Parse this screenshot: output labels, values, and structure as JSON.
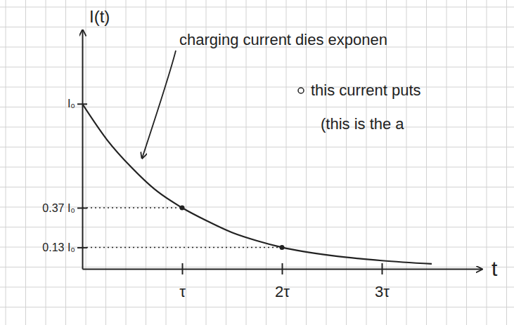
{
  "chart_data": {
    "type": "line",
    "x_label": "t",
    "y_label": "I(t)",
    "x": [
      0,
      0.25,
      0.5,
      0.75,
      1,
      1.25,
      1.5,
      1.75,
      2,
      2.5,
      3,
      3.5
    ],
    "values": [
      1,
      0.78,
      0.61,
      0.47,
      0.37,
      0.29,
      0.22,
      0.17,
      0.13,
      0.08,
      0.05,
      0.03
    ],
    "color": "#222222",
    "xlim": [
      0,
      4
    ],
    "ylim": [
      0,
      1.45
    ],
    "xticks": [
      {
        "value": 1,
        "label": "τ"
      },
      {
        "value": 2,
        "label": "2τ"
      },
      {
        "value": 3,
        "label": "3τ"
      }
    ],
    "yticks": [
      {
        "value": 0.13,
        "label": "0.13 I₀"
      },
      {
        "value": 0.37,
        "label": "0.37 I₀"
      },
      {
        "value": 1,
        "label": "I₀"
      }
    ],
    "grid": false,
    "annotations": [
      "charging current dies exponen",
      "this current puts",
      "(this is the a"
    ]
  }
}
